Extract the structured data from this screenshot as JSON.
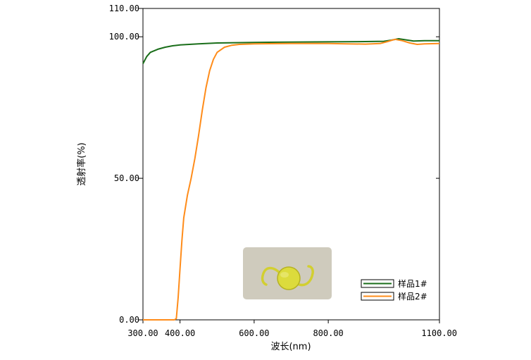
{
  "chart_data": {
    "type": "line",
    "xlabel": "波长(nm)",
    "ylabel": "透射率(%)",
    "xlim": [
      300,
      1100
    ],
    "ylim": [
      0,
      110
    ],
    "x_ticks": [
      {
        "value": 300,
        "label": "300.00"
      },
      {
        "value": 400,
        "label": "400.00"
      },
      {
        "value": 600,
        "label": "600.00"
      },
      {
        "value": 800,
        "label": "800.00"
      },
      {
        "value": 1100,
        "label": "1100.00"
      }
    ],
    "y_ticks": [
      {
        "value": 0,
        "label": "0.00"
      },
      {
        "value": 50,
        "label": "50.00"
      },
      {
        "value": 100,
        "label": "100.00"
      },
      {
        "value": 110,
        "label": "110.00"
      }
    ],
    "grid": false,
    "legend_position": "bottom-right",
    "series": [
      {
        "name": "样品1#",
        "color": "#1a6e1a",
        "points": [
          [
            300,
            90.5
          ],
          [
            310,
            93
          ],
          [
            320,
            94.5
          ],
          [
            340,
            95.6
          ],
          [
            360,
            96.3
          ],
          [
            380,
            96.8
          ],
          [
            400,
            97.1
          ],
          [
            450,
            97.5
          ],
          [
            500,
            97.8
          ],
          [
            550,
            97.9
          ],
          [
            600,
            98.0
          ],
          [
            700,
            98.1
          ],
          [
            800,
            98.2
          ],
          [
            900,
            98.3
          ],
          [
            950,
            98.4
          ],
          [
            970,
            98.8
          ],
          [
            990,
            99.3
          ],
          [
            1010,
            98.9
          ],
          [
            1030,
            98.5
          ],
          [
            1060,
            98.6
          ],
          [
            1100,
            98.6
          ]
        ]
      },
      {
        "name": "样品2#",
        "color": "#ff8c1a",
        "points": [
          [
            300,
            0
          ],
          [
            385,
            0
          ],
          [
            390,
            0.5
          ],
          [
            395,
            8
          ],
          [
            400,
            18
          ],
          [
            405,
            28
          ],
          [
            410,
            36
          ],
          [
            420,
            44
          ],
          [
            430,
            50
          ],
          [
            440,
            57
          ],
          [
            450,
            65
          ],
          [
            460,
            74
          ],
          [
            470,
            82
          ],
          [
            480,
            88
          ],
          [
            490,
            92
          ],
          [
            500,
            94.5
          ],
          [
            520,
            96.3
          ],
          [
            540,
            97.0
          ],
          [
            560,
            97.3
          ],
          [
            600,
            97.5
          ],
          [
            700,
            97.6
          ],
          [
            800,
            97.6
          ],
          [
            850,
            97.5
          ],
          [
            900,
            97.4
          ],
          [
            940,
            97.6
          ],
          [
            960,
            98.3
          ],
          [
            980,
            99.1
          ],
          [
            1000,
            98.6
          ],
          [
            1020,
            97.8
          ],
          [
            1040,
            97.3
          ],
          [
            1060,
            97.5
          ],
          [
            1100,
            97.6
          ]
        ]
      }
    ]
  },
  "image_colors": {
    "photo_background": "#cfcbbd",
    "lens_fill": "#d9d838",
    "lens_edge": "#b6b223"
  }
}
